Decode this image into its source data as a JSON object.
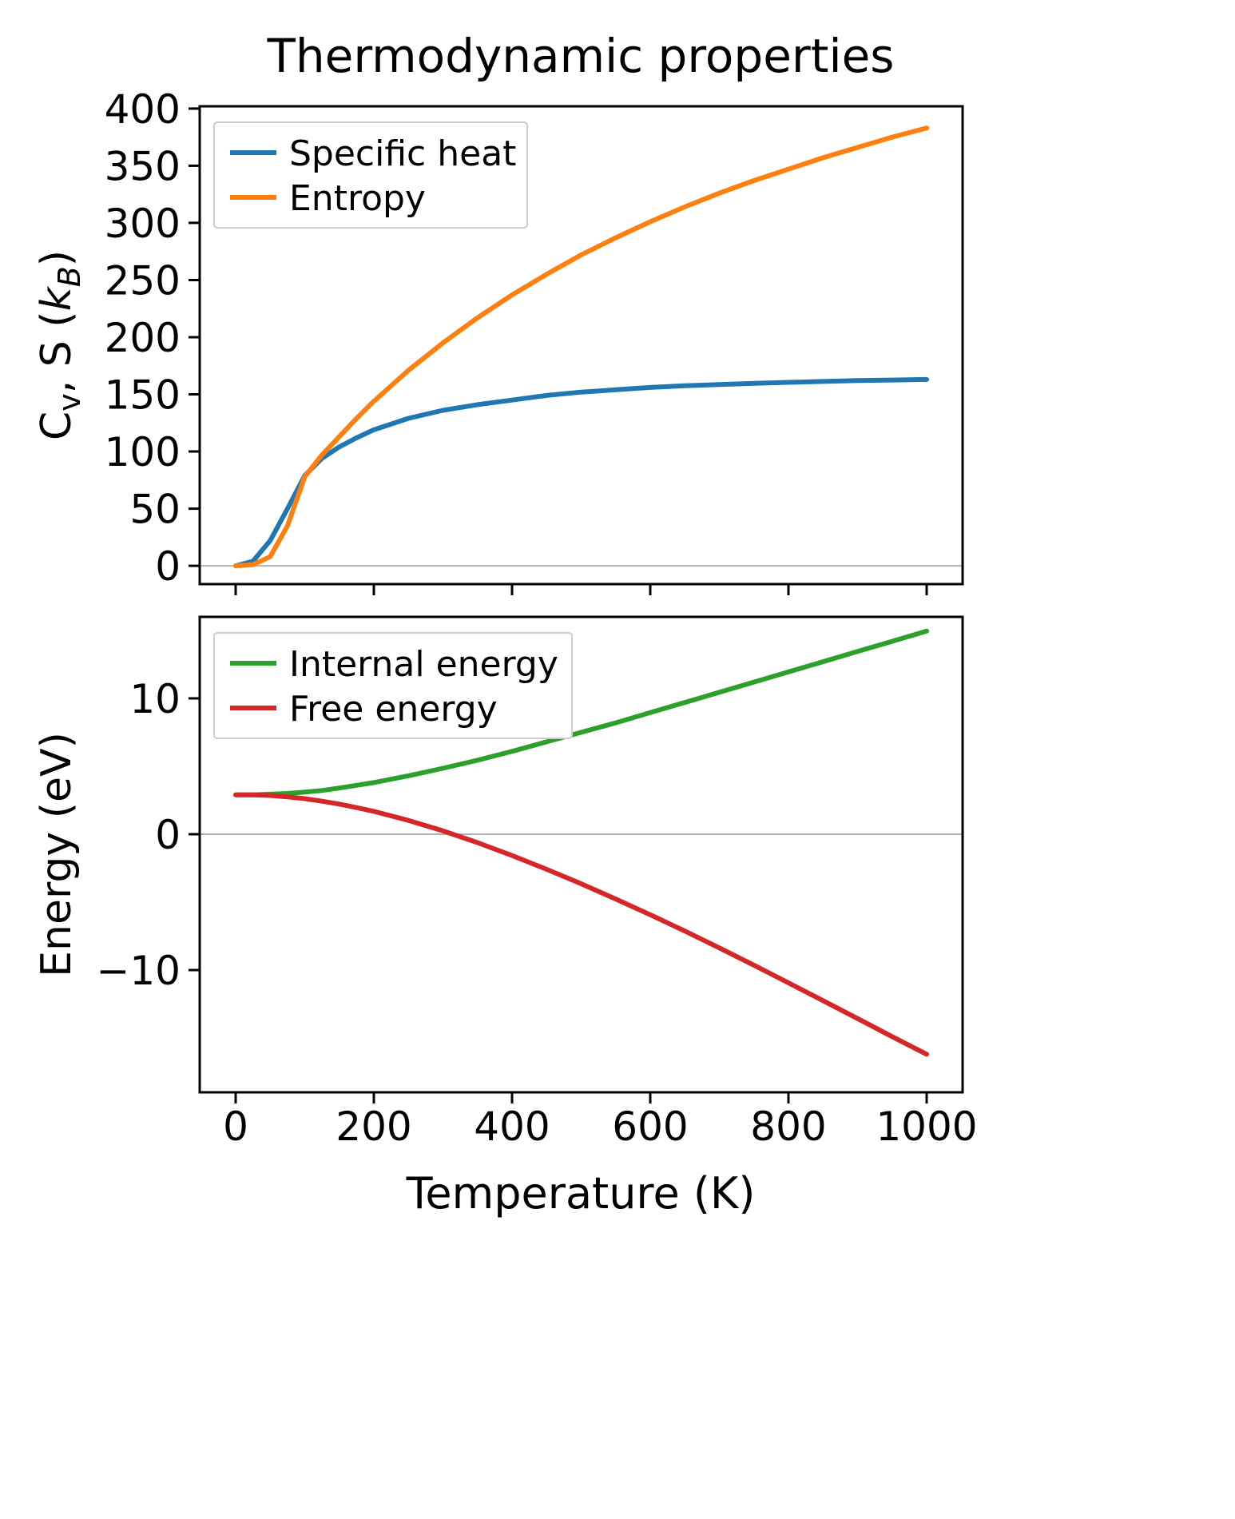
{
  "title": "Thermodynamic properties",
  "xlabel": "Temperature (K)",
  "colors": {
    "axis": "#000000",
    "zero_line": "#b0b0b0",
    "legend_border": "#cccccc",
    "background": "#ffffff"
  },
  "chart_data": [
    {
      "type": "line",
      "title": "Thermodynamic properties",
      "xlabel": "",
      "ylabel": "Cv, S (kB)",
      "ylabel_parts": [
        {
          "text": "C"
        },
        {
          "text": "v",
          "sub": true
        },
        {
          "text": ", S ("
        },
        {
          "text": "k",
          "italic": true
        },
        {
          "text": "B",
          "sub": true,
          "italic": true
        },
        {
          "text": ")"
        }
      ],
      "x": [
        0,
        25,
        50,
        75,
        100,
        125,
        150,
        175,
        200,
        250,
        300,
        350,
        400,
        450,
        500,
        550,
        600,
        650,
        700,
        750,
        800,
        850,
        900,
        950,
        1000
      ],
      "series": [
        {
          "name": "Specific heat",
          "color": "#1f77b4",
          "values": [
            0,
            4,
            22,
            50,
            79,
            94,
            104,
            112,
            119,
            129,
            136,
            141,
            145,
            149,
            152,
            154,
            156,
            157.5,
            158.6,
            159.6,
            160.5,
            161.3,
            162,
            162.5,
            163
          ]
        },
        {
          "name": "Entropy",
          "color": "#ff7f0e",
          "values": [
            0,
            1,
            8,
            35,
            78,
            97,
            113,
            129,
            144,
            171,
            195,
            217,
            237,
            255,
            272,
            287,
            301,
            314,
            326,
            337,
            347,
            357,
            366,
            375,
            383
          ]
        }
      ],
      "xlim": [
        -52,
        1052
      ],
      "ylim": [
        -16,
        402
      ],
      "xticks": [
        0,
        200,
        400,
        600,
        800,
        1000
      ],
      "yticks": [
        0,
        50,
        100,
        150,
        200,
        250,
        300,
        350,
        400
      ],
      "show_xtick_labels": false,
      "zero_line": 0,
      "grid": false,
      "legend_position": "upper left"
    },
    {
      "type": "line",
      "title": "",
      "xlabel": "Temperature (K)",
      "ylabel": "Energy (eV)",
      "ylabel_parts": [
        {
          "text": "Energy (eV)"
        }
      ],
      "x": [
        0,
        25,
        50,
        75,
        100,
        125,
        150,
        175,
        200,
        250,
        300,
        350,
        400,
        450,
        500,
        550,
        600,
        650,
        700,
        750,
        800,
        850,
        900,
        950,
        1000
      ],
      "series": [
        {
          "name": "Internal energy",
          "color": "#2ca02c",
          "values": [
            2.9,
            2.9,
            2.95,
            3.0,
            3.1,
            3.22,
            3.4,
            3.6,
            3.8,
            4.3,
            4.85,
            5.45,
            6.1,
            6.8,
            7.5,
            8.2,
            8.95,
            9.7,
            10.45,
            11.2,
            11.95,
            12.7,
            13.45,
            14.2,
            14.95
          ]
        },
        {
          "name": "Free energy",
          "color": "#d62728",
          "values": [
            2.9,
            2.9,
            2.85,
            2.75,
            2.62,
            2.43,
            2.22,
            1.96,
            1.68,
            1.02,
            0.25,
            -0.62,
            -1.57,
            -2.58,
            -3.65,
            -4.77,
            -5.93,
            -7.13,
            -8.37,
            -9.64,
            -10.94,
            -12.25,
            -13.57,
            -14.9,
            -16.2
          ]
        }
      ],
      "xlim": [
        -52,
        1052
      ],
      "ylim": [
        -19,
        16
      ],
      "xticks": [
        0,
        200,
        400,
        600,
        800,
        1000
      ],
      "yticks": [
        -10,
        0,
        10
      ],
      "show_xtick_labels": true,
      "zero_line": 0,
      "grid": false,
      "legend_position": "upper left"
    }
  ]
}
